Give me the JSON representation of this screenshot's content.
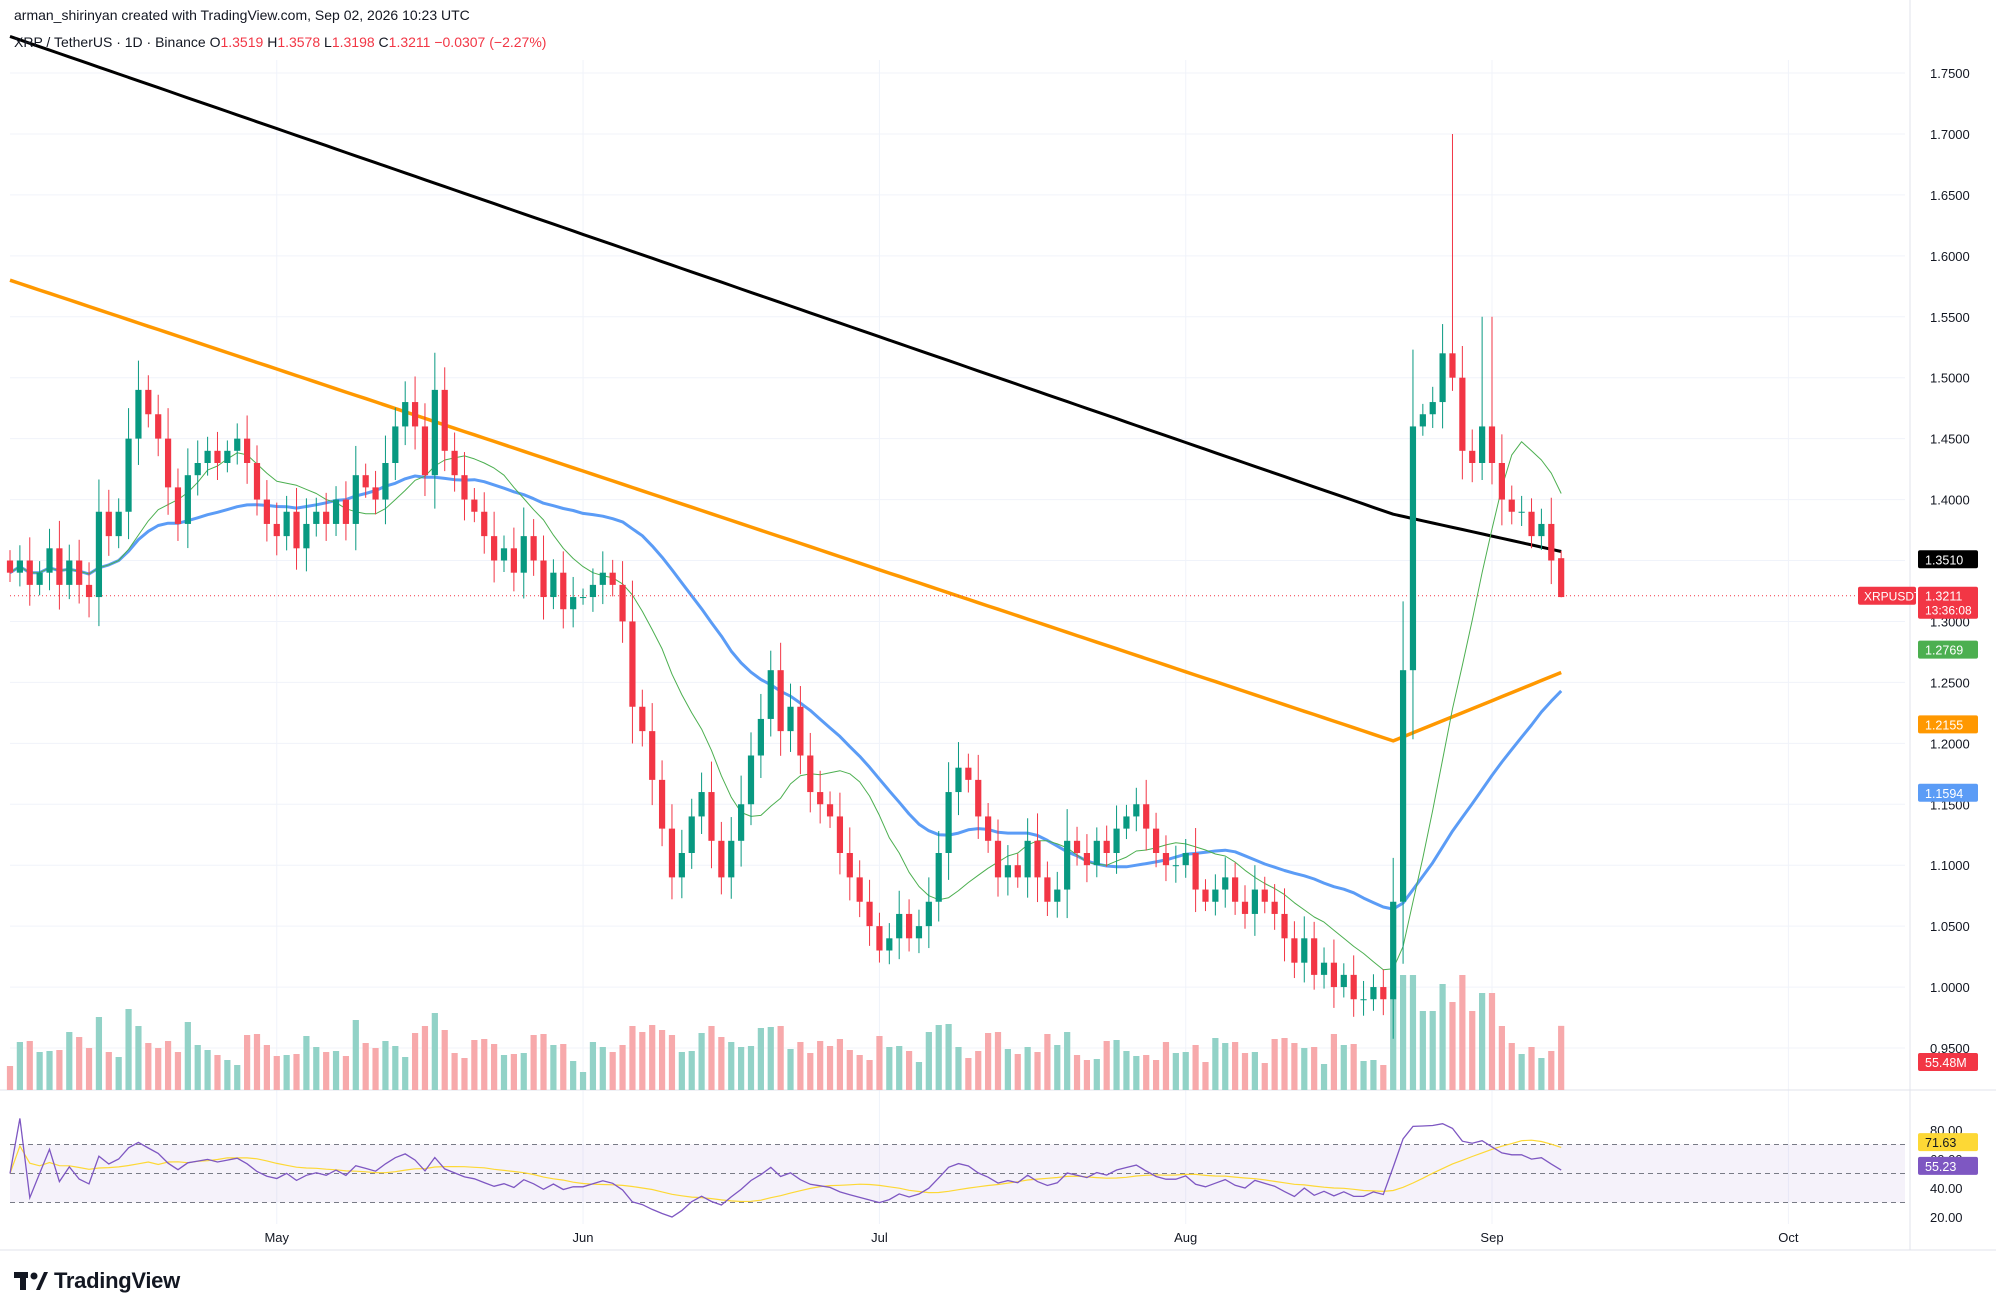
{
  "header": {
    "credit": "arman_shirinyan created with TradingView.com, Sep 02, 2026 10:23 UTC",
    "symbol": "XRP / TetherUS · 1D · Binance",
    "o_label": "O",
    "o_value": "1.3519",
    "h_label": "H",
    "h_value": "1.3578",
    "l_label": "L",
    "l_value": "1.3198",
    "c_label": "C",
    "c_value": "1.3211",
    "change": "−0.0307 (−2.27%)"
  },
  "brand": {
    "name": "TradingView",
    "icon": "tradingview-logo-icon"
  },
  "colors": {
    "up": "#089981",
    "down": "#f23645",
    "upVol": "#92d2c7",
    "downVol": "#f7a9ab",
    "ma200": "#000000",
    "ma100": "#ff9800",
    "ma50": "#5b9cf6",
    "ma20": "#4caf50",
    "rsi": "#7e57c2",
    "rsiMa": "#fdd835"
  },
  "chart_data": {
    "type": "candlestick",
    "symbol": "XRPUSDT",
    "price_axis": {
      "min": 0.93,
      "max": 1.76,
      "ticks": [
        "1.7500",
        "1.7000",
        "1.6500",
        "1.6000",
        "1.5500",
        "1.5000",
        "1.4500",
        "1.4000",
        "1.3500",
        "1.3000",
        "1.2500",
        "1.2000",
        "1.1500",
        "1.1000",
        "1.0500",
        "1.0000",
        "0.9500"
      ]
    },
    "x_axis": {
      "ticks": [
        {
          "date": "2026-05-01",
          "label": "May"
        },
        {
          "date": "2026-06-01",
          "label": "Jun"
        },
        {
          "date": "2026-07-01",
          "label": "Jul"
        },
        {
          "date": "2026-08-01",
          "label": "Aug"
        },
        {
          "date": "2026-09-01",
          "label": "Sep"
        },
        {
          "date": "2026-10-01",
          "label": "Oct"
        }
      ]
    },
    "start_date": "2026-04-04",
    "closes": [
      1.34,
      1.35,
      1.33,
      1.34,
      1.36,
      1.33,
      1.35,
      1.33,
      1.32,
      1.39,
      1.37,
      1.39,
      1.45,
      1.49,
      1.47,
      1.45,
      1.41,
      1.38,
      1.42,
      1.43,
      1.44,
      1.43,
      1.44,
      1.45,
      1.43,
      1.4,
      1.38,
      1.37,
      1.39,
      1.36,
      1.38,
      1.39,
      1.38,
      1.4,
      1.38,
      1.42,
      1.41,
      1.4,
      1.43,
      1.46,
      1.48,
      1.46,
      1.42,
      1.49,
      1.44,
      1.42,
      1.4,
      1.39,
      1.37,
      1.35,
      1.36,
      1.34,
      1.37,
      1.35,
      1.32,
      1.34,
      1.31,
      1.32,
      1.32,
      1.33,
      1.34,
      1.33,
      1.3,
      1.23,
      1.21,
      1.17,
      1.13,
      1.09,
      1.11,
      1.14,
      1.16,
      1.12,
      1.09,
      1.12,
      1.15,
      1.19,
      1.22,
      1.26,
      1.21,
      1.23,
      1.19,
      1.16,
      1.15,
      1.14,
      1.11,
      1.09,
      1.07,
      1.05,
      1.03,
      1.04,
      1.06,
      1.04,
      1.05,
      1.07,
      1.11,
      1.16,
      1.18,
      1.17,
      1.14,
      1.12,
      1.09,
      1.1,
      1.09,
      1.12,
      1.09,
      1.07,
      1.08,
      1.12,
      1.11,
      1.1,
      1.12,
      1.11,
      1.13,
      1.14,
      1.15,
      1.13,
      1.11,
      1.1,
      1.1,
      1.11,
      1.08,
      1.07,
      1.08,
      1.09,
      1.07,
      1.06,
      1.08,
      1.07,
      1.06,
      1.04,
      1.02,
      1.04,
      1.01,
      1.02,
      1.0,
      1.01,
      0.99,
      0.99,
      1.0,
      0.99,
      1.07,
      1.26,
      1.46,
      1.47,
      1.48,
      1.52,
      1.5,
      1.44,
      1.43,
      1.46,
      1.43,
      1.4,
      1.39,
      1.39,
      1.37,
      1.38,
      1.35,
      1.32
    ],
    "last_price": "1.3211",
    "countdown": "13:36:08",
    "last_volume": "55.48M",
    "moving_averages": [
      {
        "color": "#000000",
        "value": "1.3510"
      },
      {
        "color": "#4caf50",
        "value": "1.2769"
      },
      {
        "color": "#ff9800",
        "value": "1.2155"
      },
      {
        "color": "#5b9cf6",
        "value": "1.1594"
      }
    ],
    "rsi": {
      "value": "55.23",
      "ma_value": "71.63",
      "ticks": [
        "80.00",
        "60.00",
        "40.00",
        "20.00"
      ],
      "upper_band": 70,
      "lower_band": 30,
      "mid": 50
    }
  }
}
